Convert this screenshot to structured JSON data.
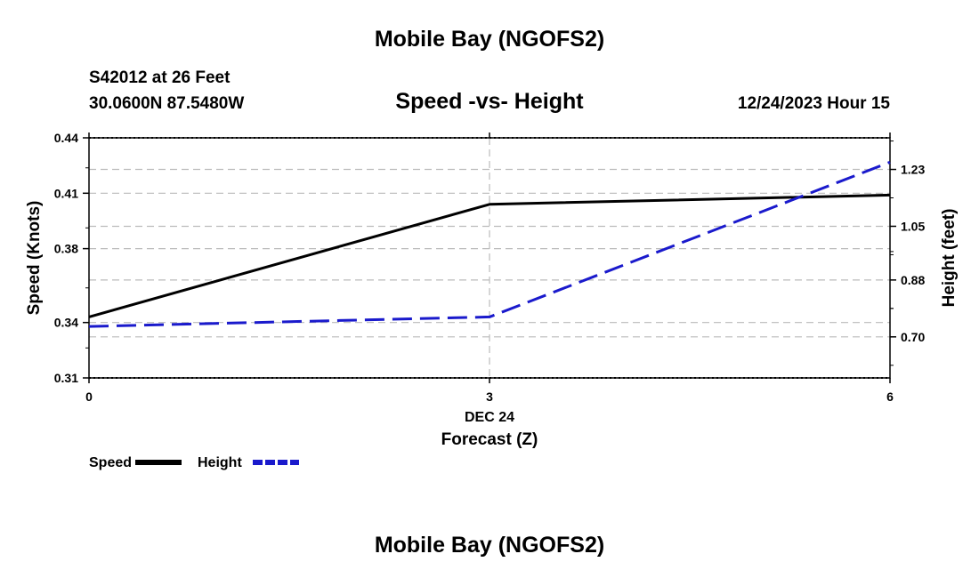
{
  "header": {
    "title": "Mobile Bay (NGOFS2)",
    "station": "S42012 at 26 Feet",
    "coords": "30.0600N  87.5480W",
    "subtitle": "Speed -vs- Height",
    "datetime": "12/24/2023 Hour 15"
  },
  "footer": {
    "title": "Mobile Bay (NGOFS2)"
  },
  "chart_data": {
    "type": "line",
    "title": "Speed -vs- Height",
    "xlabel": "Forecast (Z)",
    "x_sublabel": "DEC 24",
    "x": [
      0,
      3,
      6
    ],
    "xlim": [
      0,
      6
    ],
    "x_ticks": [
      0,
      3,
      6
    ],
    "ylabel_left": "Speed (Knots)",
    "ylim_left": [
      0.31,
      0.44
    ],
    "y_ticks_left": [
      "0.31",
      "0.34",
      "0.38",
      "0.41",
      "0.44"
    ],
    "ylabel_right": "Height (feet)",
    "ylim_right": [
      0.57,
      1.33
    ],
    "y_ticks_right": [
      "0.70",
      "0.88",
      "1.05",
      "1.23"
    ],
    "grid": true,
    "legend_position": "bottom-left",
    "series": [
      {
        "name": "Speed",
        "axis": "left",
        "color": "#000000",
        "style": "solid",
        "values": [
          0.343,
          0.404,
          0.409
        ]
      },
      {
        "name": "Height",
        "axis": "right",
        "color": "#1a1acc",
        "style": "dashed",
        "values": [
          0.733,
          0.763,
          1.253
        ]
      }
    ]
  }
}
